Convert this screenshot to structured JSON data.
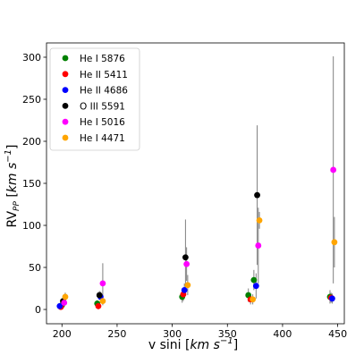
{
  "chart_data": {
    "type": "scatter",
    "xlabel": "v sini",
    "xlabel_unit": "km s",
    "xlabel_unit_exp": "−1",
    "ylabel": "RV",
    "ylabel_sub": "PP",
    "ylabel_unit": "km s",
    "ylabel_unit_exp": "−1",
    "xlim": [
      186,
      456
    ],
    "ylim": [
      -17,
      317
    ],
    "x_ticks": [
      200,
      250,
      300,
      350,
      400,
      450
    ],
    "y_ticks": [
      0,
      50,
      100,
      150,
      200,
      250,
      300
    ],
    "grid": false,
    "legend_position": "top-left",
    "error_bar_color": "#808080",
    "series": [
      {
        "name": "He I 5876",
        "color": "#008000",
        "points": [
          {
            "x": 200,
            "y": 5,
            "err": 4
          },
          {
            "x": 232,
            "y": 7,
            "err": 4
          },
          {
            "x": 309,
            "y": 15,
            "err": 7
          },
          {
            "x": 369,
            "y": 17,
            "err": 8
          },
          {
            "x": 374,
            "y": 35,
            "err": 12
          },
          {
            "x": 443,
            "y": 15,
            "err": 8
          }
        ]
      },
      {
        "name": "He II 5411",
        "color": "#ff0000",
        "points": [
          {
            "x": 199,
            "y": 3,
            "err": 3
          },
          {
            "x": 233,
            "y": 4,
            "err": 4
          },
          {
            "x": 310,
            "y": 18,
            "err": 8
          },
          {
            "x": 371,
            "y": 12,
            "err": 6
          },
          {
            "x": 444,
            "y": 14,
            "err": 6
          }
        ]
      },
      {
        "name": "He II 4686",
        "color": "#0000ff",
        "points": [
          {
            "x": 198,
            "y": 4,
            "err": 3
          },
          {
            "x": 235,
            "y": 15,
            "err": 6
          },
          {
            "x": 311,
            "y": 23,
            "err": 8
          },
          {
            "x": 376,
            "y": 28,
            "err": 15
          },
          {
            "x": 445,
            "y": 13,
            "err": 6
          }
        ]
      },
      {
        "name": "O III 5591",
        "color": "#000000",
        "points": [
          {
            "x": 201,
            "y": 10,
            "err": 5
          },
          {
            "x": 234,
            "y": 17,
            "err": 5
          },
          {
            "x": 312,
            "y": 62,
            "err": 45
          },
          {
            "x": 377,
            "y": 136,
            "err": 83
          }
        ]
      },
      {
        "name": "He I 5016",
        "color": "#ff00ff",
        "points": [
          {
            "x": 202,
            "y": 8,
            "err": 4
          },
          {
            "x": 237,
            "y": 31,
            "err": 24
          },
          {
            "x": 313,
            "y": 54,
            "err": 20
          },
          {
            "x": 378,
            "y": 76,
            "err": 45
          },
          {
            "x": 446,
            "y": 166,
            "err": 135
          }
        ]
      },
      {
        "name": "He I 4471",
        "color": "#ffa500",
        "points": [
          {
            "x": 203,
            "y": 15,
            "err": 5
          },
          {
            "x": 237,
            "y": 10,
            "err": 5
          },
          {
            "x": 314,
            "y": 29,
            "err": 12
          },
          {
            "x": 373,
            "y": 12,
            "err": 6
          },
          {
            "x": 379,
            "y": 106,
            "err": 10
          },
          {
            "x": 447,
            "y": 80,
            "err": 30
          }
        ]
      }
    ]
  }
}
